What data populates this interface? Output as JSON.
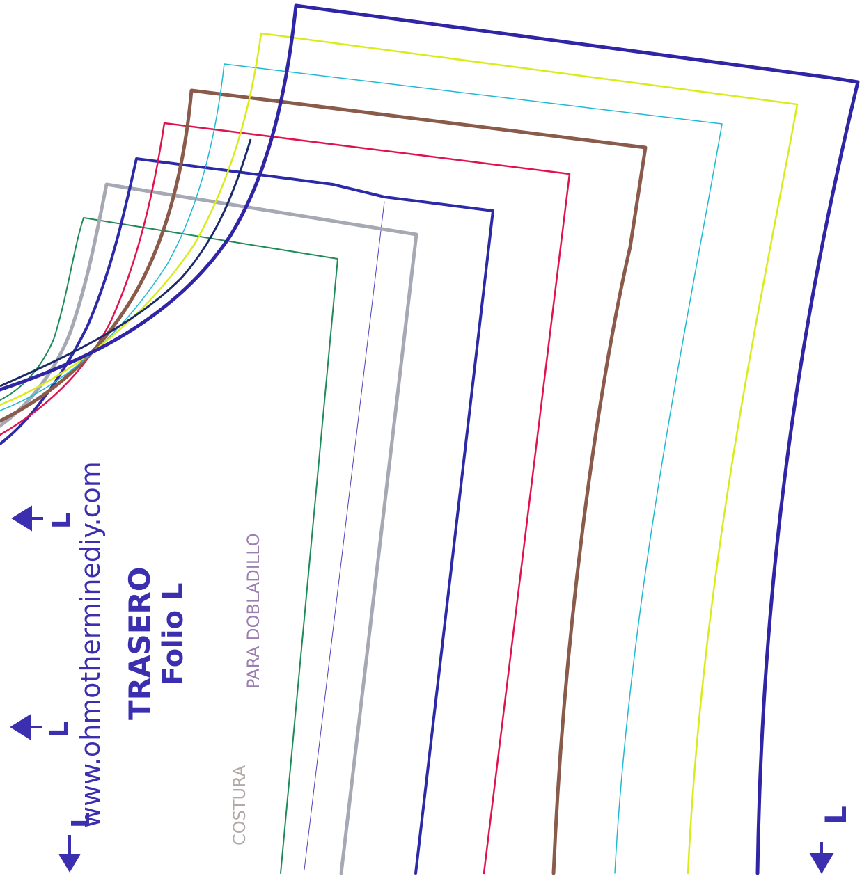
{
  "pattern": {
    "title": "TRASERO",
    "subtitle": "Folio L",
    "website": "www.ohmotherminediy.com",
    "seam_label": "COSTURA",
    "hem_label": "PARA DOBLADILLO",
    "arrow_labels": [
      "L",
      "L",
      "L",
      "L"
    ],
    "size_lines": [
      {
        "color": "#1f8a5a",
        "width": 2
      },
      {
        "color": "#4b43b8",
        "width": 1
      },
      {
        "color": "#a6a9b4",
        "width": 5
      },
      {
        "color": "#2d2aa8",
        "width": 4
      },
      {
        "color": "#e0134f",
        "width": 2.5
      },
      {
        "color": "#8a5a4a",
        "width": 5
      },
      {
        "color": "#1fb9d4",
        "width": 1.5
      },
      {
        "color": "#d9ec1a",
        "width": 2.5
      },
      {
        "color": "#2f25a5",
        "width": 5
      }
    ]
  }
}
